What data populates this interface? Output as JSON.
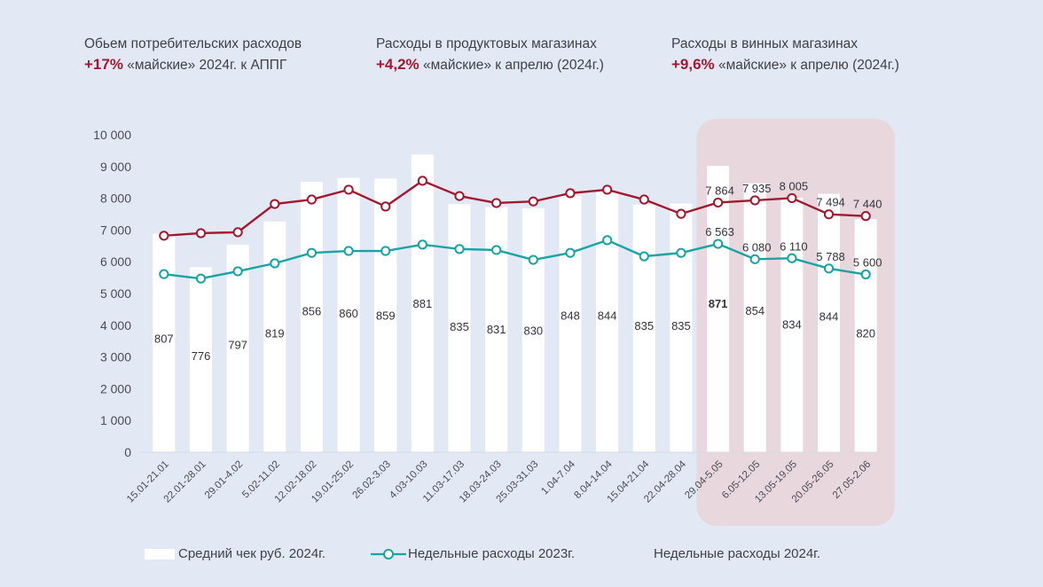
{
  "kpis": [
    {
      "title": "Обьем потребительских расходов",
      "pct": "+17%",
      "desc": "«майские» 2024г. к АППГ"
    },
    {
      "title": "Расходы в продуктовых магазинах",
      "pct": "+4,2%",
      "desc": "«майские» к апрелю (2024г.)"
    },
    {
      "title": "Расходы в  винных магазинах",
      "pct": "+9,6%",
      "desc": "«майские» к апрелю (2024г.)"
    }
  ],
  "colors": {
    "background": "#e3e9f4",
    "bars": "#ffffff",
    "series_2024": "#a3182f",
    "series_2023": "#17a4a2",
    "highlight": "#e8d8dd",
    "accent_text": "#a3182f"
  },
  "chart_data": {
    "type": "bar",
    "title": "",
    "xlabel": "",
    "ylabel": "",
    "ylim": [
      0,
      10000
    ],
    "yticks": [
      0,
      1000,
      2000,
      3000,
      4000,
      5000,
      6000,
      7000,
      8000,
      9000,
      10000
    ],
    "ytick_labels": [
      "0",
      "1 000",
      "2 000",
      "3 000",
      "4 000",
      "5 000",
      "6 000",
      "7 000",
      "8 000",
      "9 000",
      "10 000"
    ],
    "grid": false,
    "legend_position": "bottom",
    "categories": [
      "15.01-21.01",
      "22.01-28.01",
      "29.01-4.02",
      "5.02-11.02",
      "12.02-18.02",
      "19.01-25.02",
      "26.02-3.03",
      "4.03-10.03",
      "11.03-17.03",
      "18.03-24.03",
      "25.03-31.03",
      "1.04-7.04",
      "8.04-14.04",
      "15.04-21.04",
      "22.04-28.04",
      "29.04-5.05",
      "6.05-12.05",
      "13.05-19.05",
      "20.05-26.05",
      "27.05-2.06"
    ],
    "highlight_range": [
      "29.04-5.05",
      "27.05-2.06"
    ],
    "series": [
      {
        "name": "Средний чек руб. 2024г.",
        "kind": "bar",
        "values": [
          6880,
          5830,
          6540,
          7270,
          8520,
          8640,
          8620,
          9380,
          7820,
          7720,
          7680,
          8080,
          8190,
          7800,
          7830,
          9020,
          8470,
          8010,
          8140,
          7340
        ],
        "labels": [
          "807",
          "776",
          "797",
          "819",
          "856",
          "860",
          "859",
          "881",
          "835",
          "831",
          "830",
          "848",
          "844",
          "835",
          "835",
          "871",
          "854",
          "834",
          "844",
          "820"
        ],
        "label_positions": [
          3450,
          2900,
          3260,
          3620,
          4320,
          4250,
          4180,
          4550,
          3820,
          3750,
          3700,
          4170,
          4180,
          3850,
          3850,
          4550,
          4330,
          3900,
          4150,
          3620
        ],
        "bold_label_index": 15
      },
      {
        "name": "Недельные расходы 2023г.",
        "kind": "line",
        "values": [
          5610,
          5470,
          5700,
          5950,
          6280,
          6340,
          6340,
          6540,
          6400,
          6370,
          6060,
          6280,
          6680,
          6170,
          6280,
          6563,
          6080,
          6110,
          5788,
          5600
        ],
        "labels": [
          "",
          "",
          "",
          "",
          "",
          "",
          "",
          "",
          "",
          "",
          "",
          "",
          "",
          "",
          "",
          "6 563",
          "6 080",
          "6 110",
          "5 788",
          "5 600"
        ]
      },
      {
        "name": "Недельные расходы 2024г.",
        "kind": "line",
        "values": [
          6820,
          6900,
          6930,
          7820,
          7960,
          8270,
          7740,
          8550,
          8070,
          7850,
          7900,
          8160,
          8270,
          7960,
          7510,
          7864,
          7935,
          8005,
          7494,
          7440
        ],
        "labels": [
          "",
          "",
          "",
          "",
          "",
          "",
          "",
          "",
          "",
          "",
          "",
          "",
          "",
          "",
          "",
          "7 864",
          "7 935",
          "8 005",
          "7 494",
          "7 440"
        ]
      }
    ]
  },
  "legend": [
    {
      "label": "Средний чек руб. 2024г.",
      "marker": "white-bar"
    },
    {
      "label": "Недельные расходы 2023г.",
      "marker": "teal-line-circle"
    },
    {
      "label": "Недельные расходы 2024г.",
      "marker": "none"
    }
  ]
}
